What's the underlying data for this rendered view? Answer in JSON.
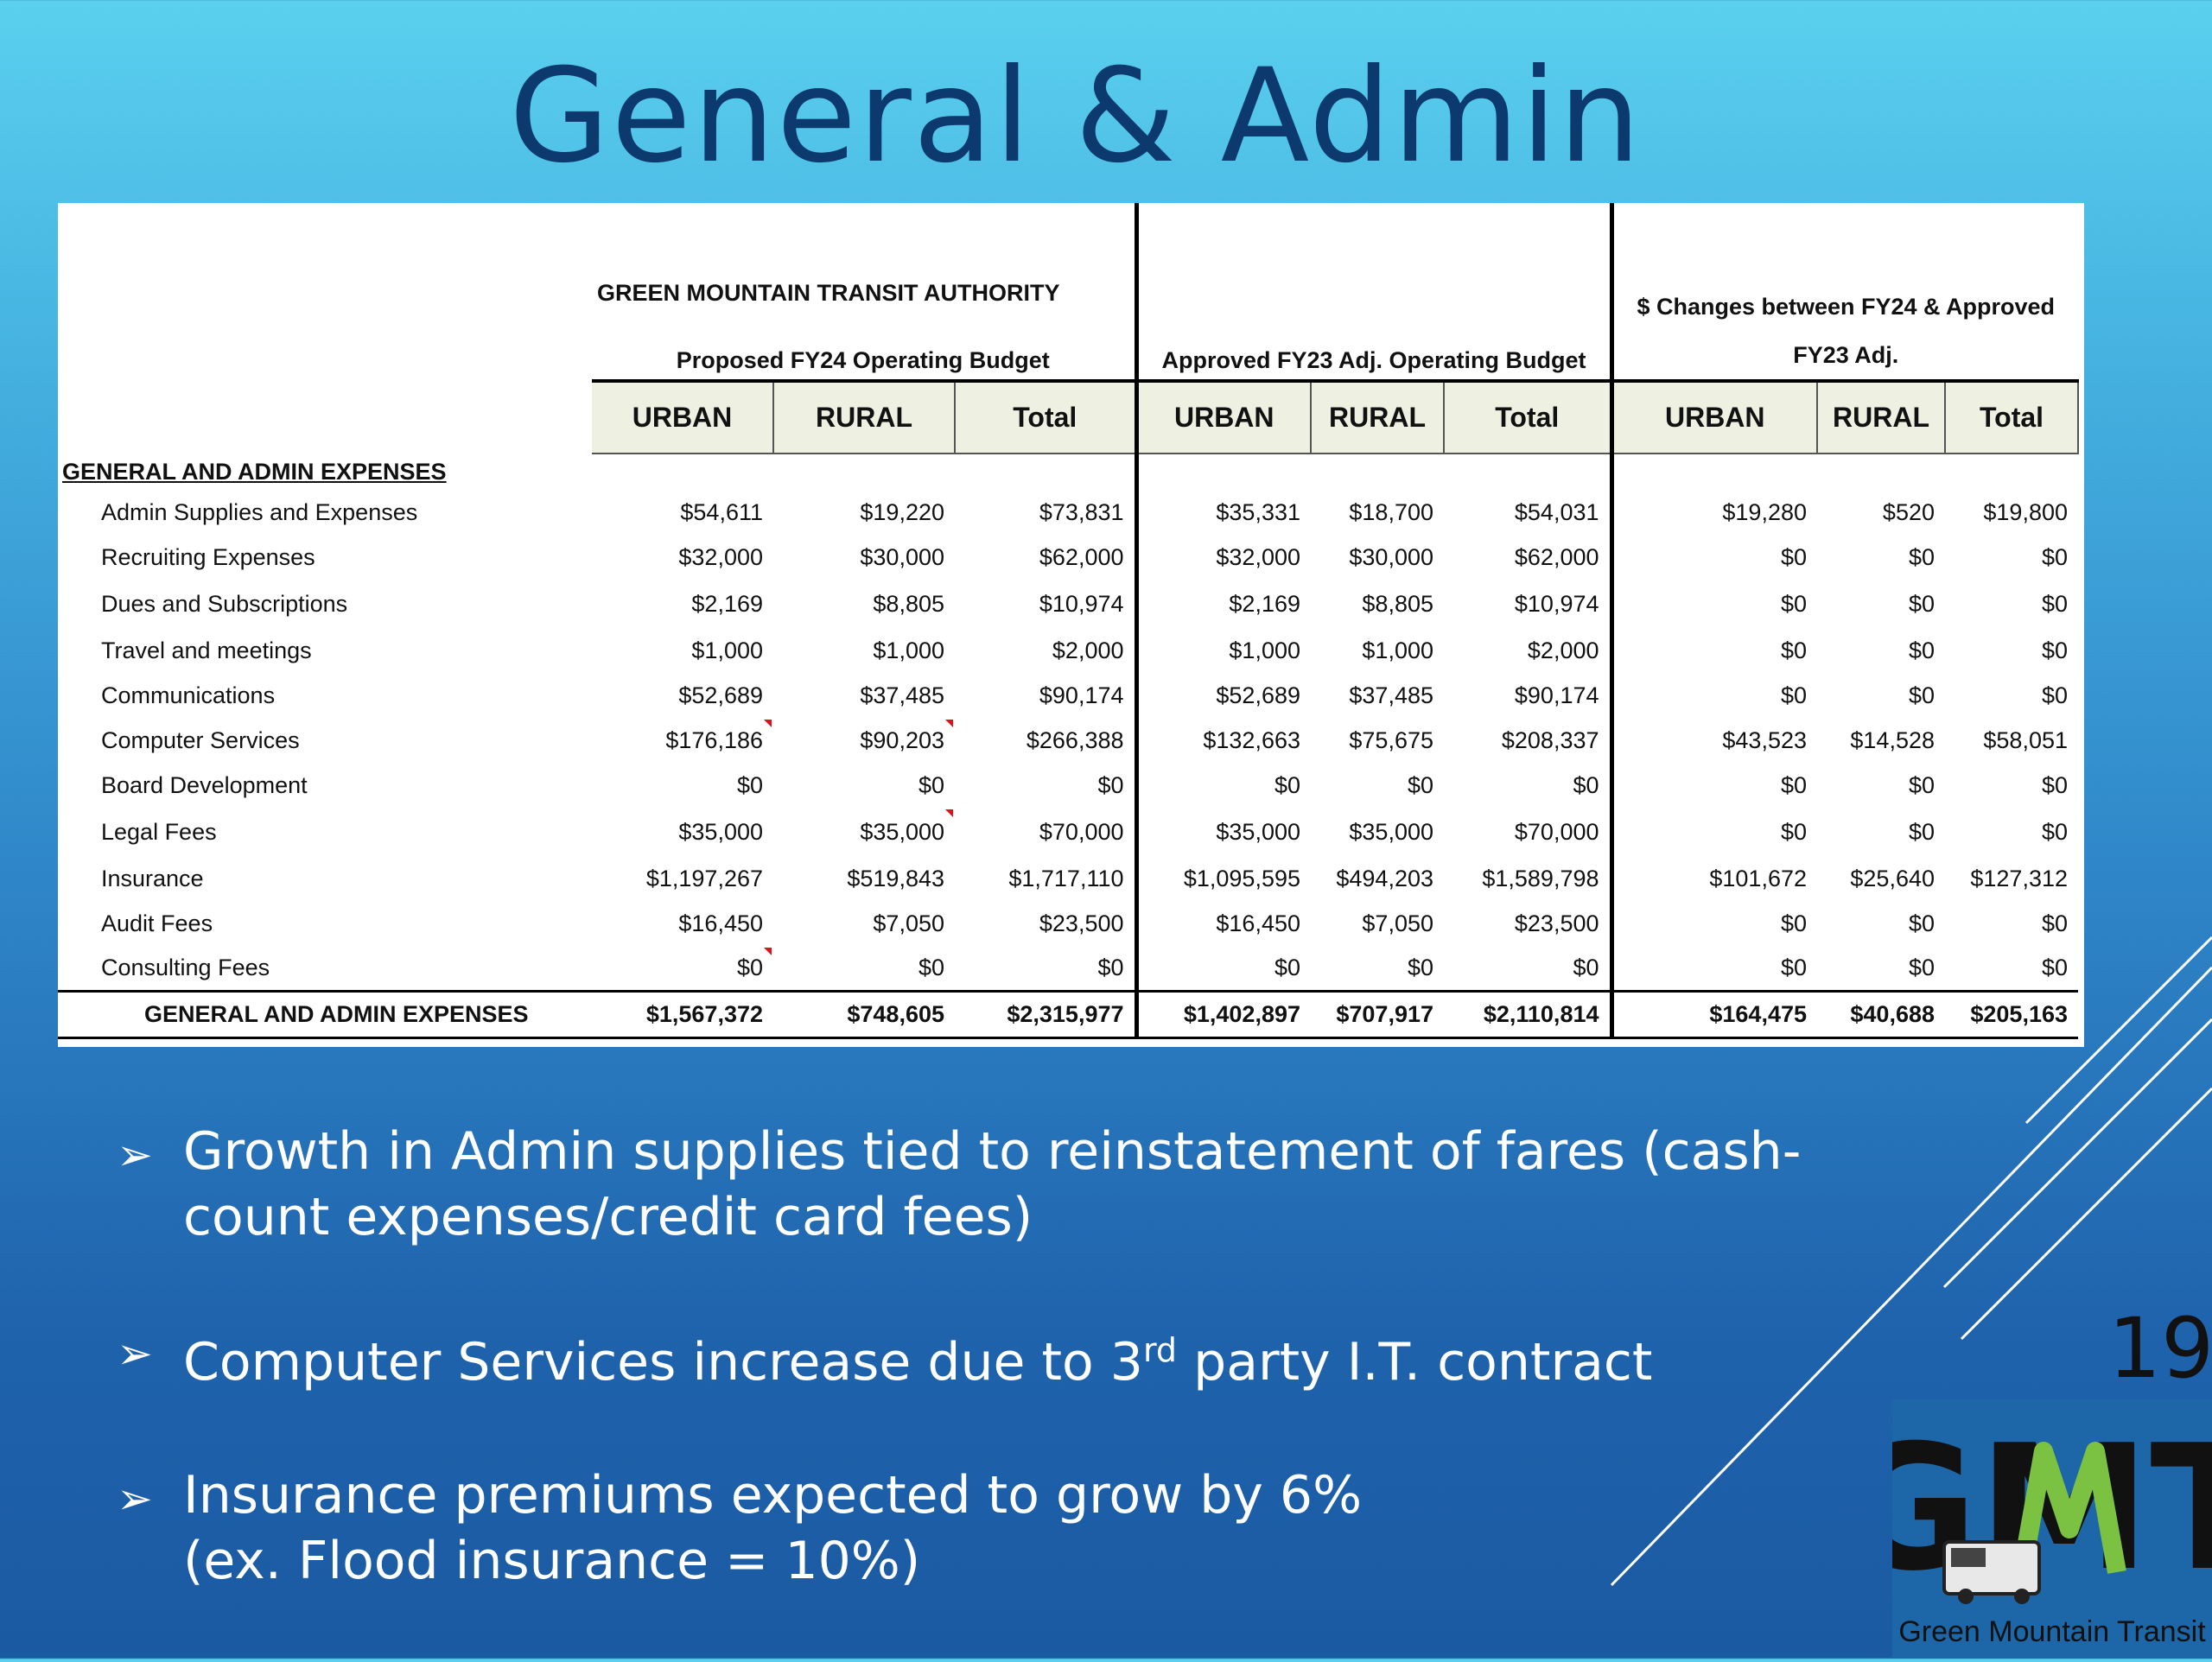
{
  "slide": {
    "title": "General & Admin",
    "page_number": "19"
  },
  "table": {
    "org_title": "GREEN MOUNTAIN TRANSIT AUTHORITY",
    "group1_title": "Proposed FY24 Operating Budget",
    "group2_title": "Approved FY23 Adj. Operating Budget",
    "group3_title": "$ Changes between FY24 & Approved FY23 Adj.",
    "col_urban": "URBAN",
    "col_rural": "RURAL",
    "col_total": "Total",
    "section_label": "GENERAL AND ADMIN EXPENSES",
    "rows": [
      {
        "label": "Admin Supplies and Expenses",
        "v": [
          "$54,611",
          "$19,220",
          "$73,831",
          "$35,331",
          "$18,700",
          "$54,031",
          "$19,280",
          "$520",
          "$19,800"
        ]
      },
      {
        "label": "Recruiting Expenses",
        "v": [
          "$32,000",
          "$30,000",
          "$62,000",
          "$32,000",
          "$30,000",
          "$62,000",
          "$0",
          "$0",
          "$0"
        ]
      },
      {
        "label": "Dues and Subscriptions",
        "v": [
          "$2,169",
          "$8,805",
          "$10,974",
          "$2,169",
          "$8,805",
          "$10,974",
          "$0",
          "$0",
          "$0"
        ]
      },
      {
        "label": "Travel and meetings",
        "v": [
          "$1,000",
          "$1,000",
          "$2,000",
          "$1,000",
          "$1,000",
          "$2,000",
          "$0",
          "$0",
          "$0"
        ]
      },
      {
        "label": "Communications",
        "v": [
          "$52,689",
          "$37,485",
          "$90,174",
          "$52,689",
          "$37,485",
          "$90,174",
          "$0",
          "$0",
          "$0"
        ]
      },
      {
        "label": "Computer Services",
        "v": [
          "$176,186",
          "$90,203",
          "$266,388",
          "$132,663",
          "$75,675",
          "$208,337",
          "$43,523",
          "$14,528",
          "$58,051"
        ]
      },
      {
        "label": "Board Development",
        "v": [
          "$0",
          "$0",
          "$0",
          "$0",
          "$0",
          "$0",
          "$0",
          "$0",
          "$0"
        ]
      },
      {
        "label": "Legal Fees",
        "v": [
          "$35,000",
          "$35,000",
          "$70,000",
          "$35,000",
          "$35,000",
          "$70,000",
          "$0",
          "$0",
          "$0"
        ]
      },
      {
        "label": "Insurance",
        "v": [
          "$1,197,267",
          "$519,843",
          "$1,717,110",
          "$1,095,595",
          "$494,203",
          "$1,589,798",
          "$101,672",
          "$25,640",
          "$127,312"
        ]
      },
      {
        "label": "Audit Fees",
        "v": [
          "$16,450",
          "$7,050",
          "$23,500",
          "$16,450",
          "$7,050",
          "$23,500",
          "$0",
          "$0",
          "$0"
        ]
      },
      {
        "label": "Consulting Fees",
        "v": [
          "$0",
          "$0",
          "$0",
          "$0",
          "$0",
          "$0",
          "$0",
          "$0",
          "$0"
        ]
      }
    ],
    "total": {
      "label": "GENERAL AND ADMIN EXPENSES",
      "v": [
        "$1,567,372",
        "$748,605",
        "$2,315,977",
        "$1,402,897",
        "$707,917",
        "$2,110,814",
        "$164,475",
        "$40,688",
        "$205,163"
      ]
    }
  },
  "bullets": [
    {
      "text": "Growth in Admin supplies tied to reinstatement of fares (cash-count expenses/credit card fees)"
    },
    {
      "text_pre": "Computer Services increase due to 3",
      "sup": "rd",
      "text_post": " party I.T. contract"
    },
    {
      "line1": "Insurance premiums expected to grow by 6%",
      "line2": "(ex. Flood insurance = 10%)"
    }
  ],
  "logo": {
    "letters": "GMT",
    "caption": "Green Mountain Transit"
  },
  "colors": {
    "title": "#0d3a6e",
    "comment_flag": "#d8141c",
    "header_cell": "#eef1e2",
    "logo_green": "#7cc242"
  },
  "comment_flags": [
    [
      5,
      0
    ],
    [
      5,
      1
    ],
    [
      7,
      1
    ],
    [
      10,
      0
    ]
  ]
}
